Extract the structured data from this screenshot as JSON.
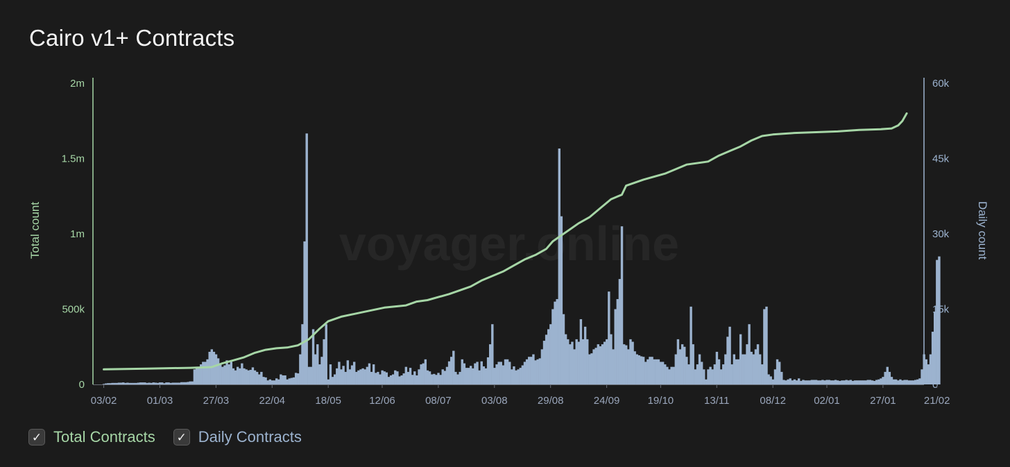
{
  "title": "Cairo v1+ Contracts",
  "legend": [
    {
      "label": "Total Contracts",
      "color": "#a6d6a6",
      "checked": true
    },
    {
      "label": "Daily Contracts",
      "color": "#9cb3cf",
      "checked": true
    }
  ],
  "watermark": "voyager.online",
  "chart_data": {
    "type": "bar+line",
    "y_left": {
      "label": "Total count",
      "ticks": [
        "0",
        "500k",
        "1m",
        "1.5m",
        "2m"
      ],
      "range": [
        0,
        2000000
      ]
    },
    "y_right": {
      "label": "Daily count",
      "ticks": [
        "0",
        "15k",
        "30k",
        "45k",
        "60k"
      ],
      "range": [
        0,
        60000
      ]
    },
    "x_ticks": [
      "03/02",
      "01/03",
      "27/03",
      "22/04",
      "18/05",
      "12/06",
      "08/07",
      "03/08",
      "29/08",
      "24/09",
      "19/10",
      "13/11",
      "08/12",
      "02/01",
      "27/01",
      "21/02"
    ],
    "x_range_days": [
      -5,
      380
    ],
    "x_tick_days": [
      0,
      26,
      52,
      78,
      104,
      129,
      155,
      181,
      207,
      233,
      258,
      284,
      310,
      335,
      361,
      386
    ],
    "series": [
      {
        "name": "Total Contracts",
        "type": "line",
        "axis": "left",
        "points": [
          [
            0,
            100000
          ],
          [
            20,
            105000
          ],
          [
            40,
            110000
          ],
          [
            50,
            115000
          ],
          [
            55,
            140000
          ],
          [
            60,
            160000
          ],
          [
            65,
            180000
          ],
          [
            70,
            210000
          ],
          [
            75,
            230000
          ],
          [
            80,
            240000
          ],
          [
            85,
            245000
          ],
          [
            90,
            260000
          ],
          [
            95,
            300000
          ],
          [
            100,
            370000
          ],
          [
            104,
            420000
          ],
          [
            110,
            450000
          ],
          [
            120,
            480000
          ],
          [
            130,
            510000
          ],
          [
            140,
            525000
          ],
          [
            145,
            550000
          ],
          [
            150,
            560000
          ],
          [
            160,
            600000
          ],
          [
            170,
            650000
          ],
          [
            175,
            690000
          ],
          [
            180,
            720000
          ],
          [
            185,
            750000
          ],
          [
            190,
            790000
          ],
          [
            195,
            830000
          ],
          [
            200,
            860000
          ],
          [
            205,
            900000
          ],
          [
            208,
            950000
          ],
          [
            212,
            990000
          ],
          [
            216,
            1030000
          ],
          [
            220,
            1070000
          ],
          [
            225,
            1110000
          ],
          [
            230,
            1170000
          ],
          [
            235,
            1230000
          ],
          [
            240,
            1260000
          ],
          [
            242,
            1320000
          ],
          [
            250,
            1360000
          ],
          [
            260,
            1400000
          ],
          [
            265,
            1430000
          ],
          [
            270,
            1460000
          ],
          [
            280,
            1480000
          ],
          [
            285,
            1520000
          ],
          [
            290,
            1550000
          ],
          [
            295,
            1580000
          ],
          [
            300,
            1620000
          ],
          [
            305,
            1650000
          ],
          [
            310,
            1660000
          ],
          [
            320,
            1670000
          ],
          [
            330,
            1675000
          ],
          [
            340,
            1680000
          ],
          [
            350,
            1690000
          ],
          [
            360,
            1695000
          ],
          [
            365,
            1700000
          ],
          [
            368,
            1720000
          ],
          [
            370,
            1750000
          ],
          [
            372,
            1800000
          ]
        ]
      },
      {
        "name": "Daily Contracts",
        "type": "bar",
        "axis": "right",
        "values": [
          100,
          200,
          250,
          250,
          300,
          300,
          300,
          350,
          350,
          400,
          300,
          350,
          300,
          300,
          300,
          300,
          350,
          400,
          400,
          400,
          300,
          350,
          300,
          400,
          350,
          300,
          400,
          400,
          250,
          400,
          400,
          300,
          350,
          350,
          350,
          350,
          450,
          450,
          450,
          500,
          600,
          600,
          3000,
          3200,
          3500,
          4000,
          4500,
          4500,
          5000,
          6500,
          7000,
          6500,
          6000,
          5200,
          4000,
          3500,
          3800,
          4800,
          4000,
          4500,
          3200,
          2800,
          3500,
          3200,
          4200,
          3200,
          3000,
          2800,
          2900,
          3400,
          2800,
          2500,
          2000,
          2500,
          1500,
          1400,
          800,
          1000,
          800,
          800,
          1200,
          1000,
          2000,
          1800,
          1800,
          1000,
          1200,
          1300,
          1400,
          2300,
          2200,
          6000,
          12000,
          28500,
          50000,
          3500,
          3500,
          11000,
          6000,
          8000,
          4000,
          5500,
          9000,
          12000,
          1000,
          4000,
          1500,
          2000,
          3200,
          4500,
          3000,
          3700,
          2500,
          4800,
          3000,
          3800,
          4500,
          2500,
          2800,
          3000,
          3200,
          3000,
          3500,
          4200,
          2500,
          4000,
          2300,
          2500,
          2000,
          2800,
          2600,
          2400,
          1500,
          1800,
          2000,
          2800,
          2600,
          1600,
          1800,
          2200,
          3500,
          2500,
          3300,
          1900,
          2600,
          1800,
          3000,
          4000,
          4200,
          5000,
          2800,
          2600,
          2000,
          2100,
          1900,
          2300,
          1900,
          3000,
          2700,
          3500,
          4600,
          5500,
          6700,
          2500,
          2000,
          2500,
          5000,
          4200,
          3300,
          3300,
          3700,
          3200,
          4200,
          4500,
          2800,
          4600,
          3600,
          3200,
          5400,
          8000,
          12000,
          3300,
          4000,
          4500,
          4500,
          3800,
          5000,
          5000,
          4500,
          3000,
          3600,
          2800,
          3000,
          3300,
          3800,
          4500,
          5000,
          5500,
          5500,
          6000,
          4800,
          5000,
          5200,
          7000,
          8700,
          9900,
          11000,
          12000,
          15000,
          16500,
          17000,
          47000,
          33500,
          14000,
          10000,
          9000,
          8000,
          8500,
          7000,
          9000,
          8500,
          13000,
          9000,
          11500,
          9000,
          6000,
          6200,
          7000,
          7300,
          8000,
          7600,
          8000,
          8500,
          9000,
          18500,
          10000,
          7000,
          15000,
          17000,
          21000,
          31500,
          8000,
          7800,
          7000,
          9000,
          8500,
          6600,
          6000,
          5800,
          5600,
          5500,
          4500,
          5000,
          5500,
          5500,
          5000,
          5000,
          5000,
          4500,
          4500,
          4000,
          3500,
          3000,
          3500,
          3500,
          6000,
          9000,
          7000,
          8000,
          7500,
          5500,
          4000,
          15500,
          8000,
          3000,
          4000,
          6000,
          4500,
          3000,
          1000,
          3000,
          3500,
          3000,
          4000,
          6500,
          5000,
          3000,
          4000,
          6000,
          9500,
          11500,
          4000,
          6000,
          5000,
          5000,
          10000,
          6000,
          6000,
          8000,
          12000,
          6500,
          6000,
          7000,
          8000,
          6000,
          4000,
          15000,
          15500,
          2000,
          1600,
          1000,
          3000,
          5000,
          4500,
          2500,
          900,
          800,
          1000,
          1200,
          800,
          1000,
          800,
          1200,
          700,
          900,
          800,
          800,
          800,
          900,
          900,
          900,
          800,
          800,
          900,
          800,
          900,
          900,
          800,
          800,
          900,
          800,
          700,
          800,
          800,
          900,
          800,
          900,
          700,
          800,
          800,
          800,
          800,
          800,
          800,
          900,
          900,
          800,
          700,
          900,
          1000,
          1200,
          1500,
          2500,
          3500,
          2500,
          1500,
          1000,
          1000,
          800,
          1000,
          800,
          900,
          900,
          800,
          800,
          800,
          900,
          1000,
          1200,
          3000,
          6000,
          5000,
          4000,
          6000,
          10500,
          14500,
          24800,
          25500
        ]
      }
    ]
  }
}
